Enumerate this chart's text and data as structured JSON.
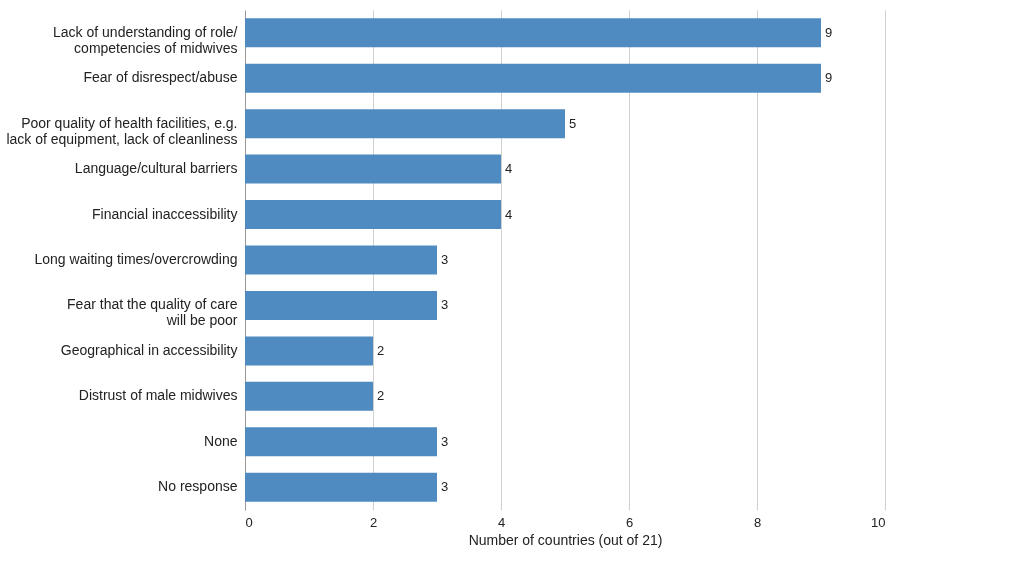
{
  "chart_data": {
    "type": "bar",
    "orientation": "horizontal",
    "xlabel": "Number of countries (out of 21)",
    "categories": [
      "Lack of understanding of role/\ncompetencies of midwives",
      "Fear of disrespect/abuse",
      "Poor quality of health facilities, e.g.\nlack of equipment, lack of cleanliness",
      "Language/cultural barriers",
      "Financial inaccessibility",
      "Long waiting times/overcrowding",
      "Fear that the quality of care\nwill be poor",
      "Geographical in accessibility",
      "Distrust of male midwives",
      "None",
      "No response"
    ],
    "values": [
      9,
      9,
      5,
      4,
      4,
      3,
      3,
      2,
      2,
      3,
      3
    ],
    "color": "#4f8bc0",
    "xlim": [
      0,
      10
    ],
    "xticks": [
      0,
      2,
      4,
      6,
      8,
      10
    ],
    "grid": "x",
    "data_labels": true
  }
}
